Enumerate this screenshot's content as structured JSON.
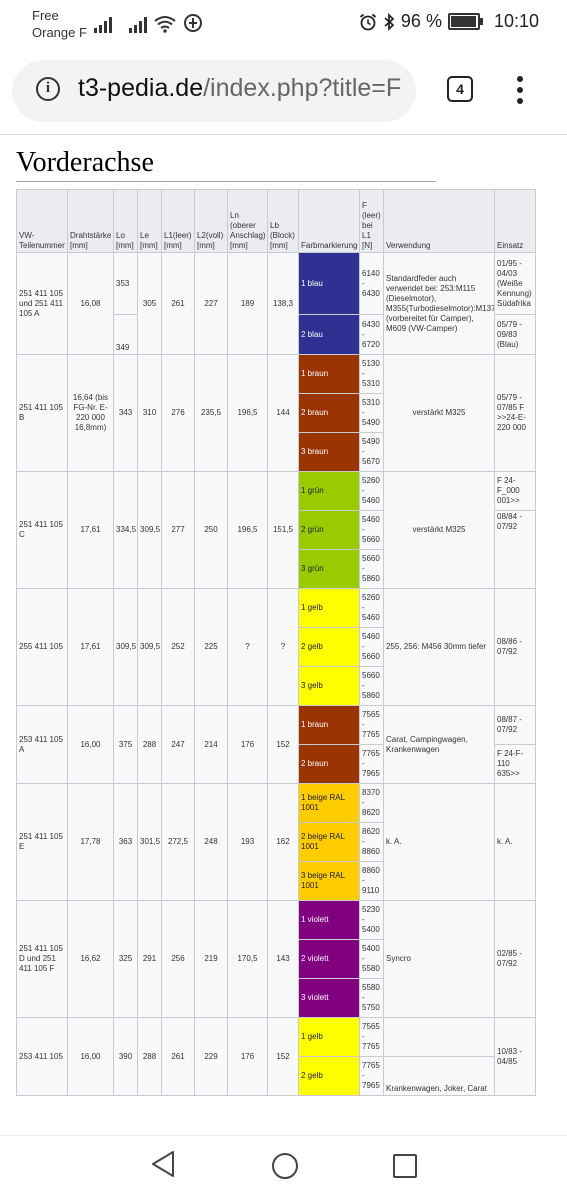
{
  "status_bar": {
    "carrier_line1": "Free",
    "carrier_line2": "Orange F",
    "battery": "96 %",
    "time": "10:10",
    "icons": [
      "signal-icon",
      "signal-icon",
      "wifi-icon",
      "data-saver-icon",
      "alarm-icon",
      "bluetooth-icon",
      "battery-icon"
    ]
  },
  "browser": {
    "url_domain": "t3-pedia.de",
    "url_path": "/index.php?title=F",
    "tab_count": "4",
    "icons": [
      "info-icon",
      "menu-icon"
    ]
  },
  "section": {
    "title": "Vorderachse"
  },
  "table": {
    "headers": {
      "part": "VW-Teilenummer",
      "wire": "Drahtstärke [mm]",
      "lo": "Lo [mm]",
      "le": "Le [mm]",
      "l1": "L1(leer) [mm]",
      "l2": "L2(voll) [mm]",
      "ln": "Ln (oberer Anschlag) [mm]",
      "lb": "Lb (Block) [mm]",
      "color": "Farbmarkierung",
      "force": "F (leer) bei L1 [N]",
      "usage": "Verwendung",
      "since": "Einsatz"
    },
    "g1": {
      "part": "251 411 105 und 251 411 105 A",
      "wire": "16,08",
      "lo_a": "353",
      "lo_b": "349",
      "le": "305",
      "l1": "261",
      "l2": "227",
      "ln": "189",
      "lb": "138,3",
      "c1": "1 blau",
      "c2": "2 blau",
      "f1": "6140 - 6430",
      "f2": "6430 - 6720",
      "usage": "Standardfeder auch verwendet bei: 253:M115 (Dieselmotor), M355(Turbodieselmotor):M137 (vorbereitet für Camper), M609 (VW-Camper)",
      "e1": "01/95 - 04/03 (Weiße Kennung) Südafrika",
      "e2": "05/79 - 09/83 (Blau)"
    },
    "g2": {
      "part": "251 411 105 B",
      "wire": "16,64 (bis FG-Nr. E-220 000 16,8mm)",
      "lo": "343",
      "le": "310",
      "l1": "276",
      "l2": "235,5",
      "ln": "196,5",
      "lb": "144",
      "c1": "1 braun",
      "c2": "2 braun",
      "c3": "3 braun",
      "f1": "5130 - 5310",
      "f2": "5310 - 5490",
      "f3": "5490 - 5670",
      "usage": "verstärkt M325",
      "e1": "05/79 - 07/85 F >>24-E-220 000"
    },
    "g3": {
      "part": "251 411 105 C",
      "wire": "17,61",
      "lo": "334,5",
      "le": "309,5",
      "l1": "277",
      "l2": "250",
      "ln": "196,5",
      "lb": "151,5",
      "c1": "1 grün",
      "c2": "2 grün",
      "c3": "3 grün",
      "f1": "5260 - 5460",
      "f2": "5460 - 5660",
      "f3": "5660 - 5860",
      "usage": "verstärkt M325",
      "e1": "F 24-F_000 001>>",
      "e2": "08/84 - 07/92"
    },
    "g4": {
      "part": "255 411 105",
      "wire": "17,61",
      "lo": "309,5",
      "le": "309,5",
      "l1": "252",
      "l2": "225",
      "ln": "?",
      "lb": "?",
      "c1": "1 gelb",
      "c2": "2 gelb",
      "c3": "3 gelb",
      "f1": "5260 - 5460",
      "f2": "5460 - 5660",
      "f3": "5660 - 5860",
      "usage": "255, 256: M456 30mm tiefer",
      "e1": "08/86 - 07/92"
    },
    "g5": {
      "part": "253 411 105 A",
      "wire": "16,00",
      "lo": "375",
      "le": "288",
      "l1": "247",
      "l2": "214",
      "ln": "176",
      "lb": "152",
      "c1": "1 braun",
      "c2": "2 braun",
      "f1": "7565 - 7765",
      "f2": "7765 - 7965",
      "usage": "Carat, Campingwagen, Krankenwagen",
      "e1": "08/87 - 07/92",
      "e2": "F 24-F-110 635>>"
    },
    "g6": {
      "part": "251 411 105 E",
      "wire": "17,78",
      "lo": "363",
      "le": "301,5",
      "l1": "272,5",
      "l2": "248",
      "ln": "193",
      "lb": "162",
      "c1": "1 beige RAL 1001",
      "c2": "2 beige RAL 1001",
      "c3": "3 beige RAL 1001",
      "f1": "8370 - 8620",
      "f2": "8620 - 8860",
      "f3": "8860 - 9110",
      "usage": "k. A.",
      "e1": "k. A."
    },
    "g7": {
      "part": "251 411 105 D und 251 411 105 F",
      "wire": "16,62",
      "lo": "325",
      "le": "291",
      "l1": "256",
      "l2": "219",
      "ln": "170,5",
      "lb": "143",
      "c1": "1 violett",
      "c2": "2 violett",
      "c3": "3 violett",
      "f1": "5230 - 5400",
      "f2": "5400 - 5580",
      "f3": "5580 - 5750",
      "usage": "Syncro",
      "e1": "02/85 - 07/92"
    },
    "g8": {
      "part": "253 411 105",
      "wire": "16,00",
      "lo": "390",
      "le": "288",
      "l1": "261",
      "l2": "229",
      "ln": "176",
      "lb": "152",
      "c1": "1 gelb",
      "c2": "2 gelb",
      "f1": "7565 - 7765",
      "f2": "7765 - 7965",
      "usage": "Krankenwagen, Joker, Carat",
      "e1": "10/83 - 04/85"
    },
    "colors": {
      "blau": "#2e3192",
      "braun": "#993300",
      "gruen": "#99cc00",
      "gelb": "#ffff00",
      "beige": "#ffcc00",
      "violett": "#800080"
    }
  },
  "nav_bar": {
    "icons": [
      "back-icon",
      "home-icon",
      "recents-icon"
    ]
  }
}
